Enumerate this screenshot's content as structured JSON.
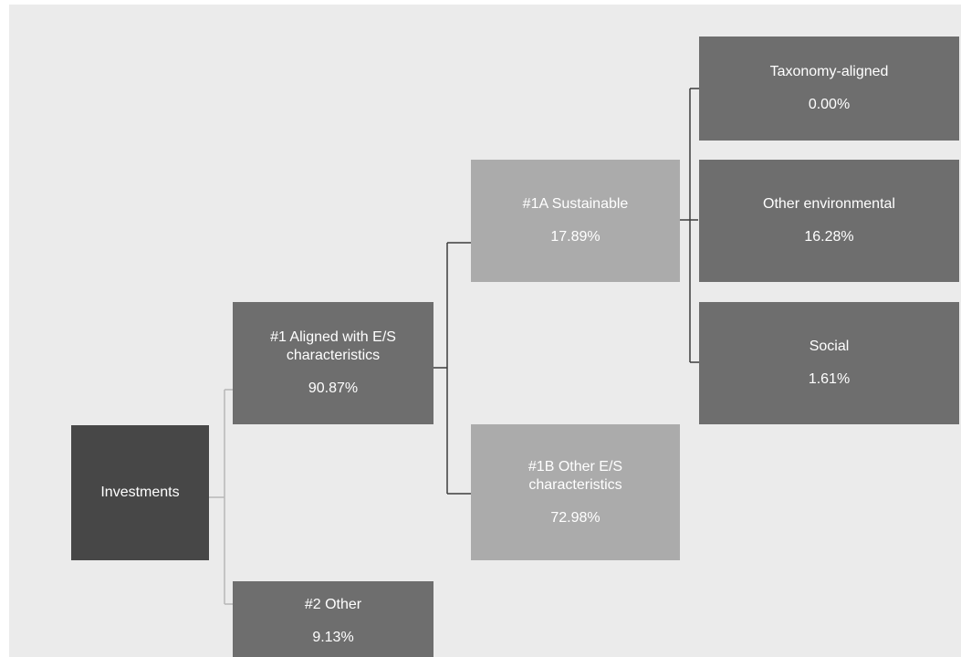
{
  "colors": {
    "root": "#474747",
    "level": "#6e6e6e",
    "sub": "#ababab",
    "background": "#ebebeb",
    "connector": "#5a5a5a"
  },
  "nodes": {
    "investments": {
      "label": "Investments"
    },
    "aligned": {
      "label": "#1 Aligned with E/S characteristics",
      "value": "90.87%"
    },
    "other": {
      "label": "#2 Other",
      "value": "9.13%"
    },
    "sustainable": {
      "label": "#1A Sustainable",
      "value": "17.89%"
    },
    "other_es": {
      "label": "#1B Other E/S characteristics",
      "value": "72.98%"
    },
    "taxonomy": {
      "label": "Taxonomy-aligned",
      "value": "0.00%"
    },
    "other_env": {
      "label": "Other environmental",
      "value": "16.28%"
    },
    "social": {
      "label": "Social",
      "value": "1.61%"
    }
  }
}
